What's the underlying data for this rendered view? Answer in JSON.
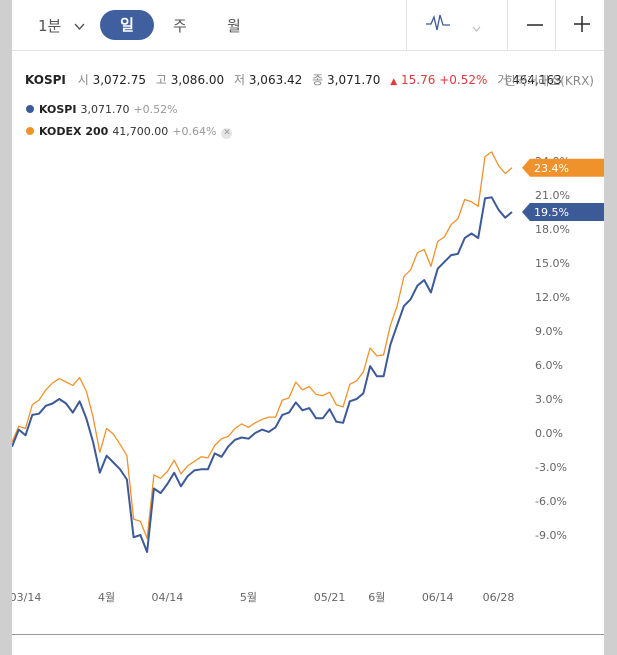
{
  "toolbar": {
    "interval": "1분",
    "tabs": [
      "일",
      "주",
      "월"
    ],
    "active_tab": "일",
    "icons": [
      "chevron-down-icon",
      "line-chart-icon",
      "minus-icon",
      "plus-icon"
    ]
  },
  "summary": {
    "name": "KOSPI",
    "open_label": "시",
    "open": "3,072.75",
    "high_label": "고",
    "high": "3,086.00",
    "low_label": "저",
    "low": "3,063.42",
    "close_label": "종",
    "close": "3,071.70",
    "change": "15.76",
    "change_pct": "+0.52%",
    "volume_label": "거",
    "volume": "464,163",
    "exchange": "한국거래소(KRX)"
  },
  "legend": [
    {
      "name": "KOSPI",
      "value": "3,071.70",
      "change": "+0.52%",
      "color": "#3d5a98"
    },
    {
      "name": "KODEX 200",
      "value": "41,700.00",
      "change": "+0.64%",
      "color": "#f0922b"
    }
  ],
  "colors": {
    "up": "#e03a3a",
    "accent": "#3f5f9e"
  },
  "chart_data": {
    "type": "line",
    "y_unit": "%",
    "yticks": [
      "-9.0%",
      "-6.0%",
      "-3.0%",
      "0.0%",
      "3.0%",
      "6.0%",
      "9.0%",
      "12.0%",
      "15.0%",
      "18.0%",
      "21.0%",
      "24.0%"
    ],
    "ylim": [
      -12.5,
      26.0
    ],
    "xticks": [
      {
        "label": "03/14",
        "index": 2
      },
      {
        "label": "4월",
        "index": 14
      },
      {
        "label": "04/14",
        "index": 23
      },
      {
        "label": "5월",
        "index": 35
      },
      {
        "label": "05/21",
        "index": 47
      },
      {
        "label": "6월",
        "index": 54
      },
      {
        "label": "06/14",
        "index": 63
      },
      {
        "label": "06/28",
        "index": 72
      }
    ],
    "series": [
      {
        "name": "KOSPI",
        "end_label": "19.5%",
        "values": [
          -1.2,
          0.3,
          -0.2,
          1.6,
          1.7,
          2.4,
          2.6,
          3.0,
          2.6,
          1.8,
          2.8,
          1.3,
          -0.8,
          -3.5,
          -2.0,
          -2.6,
          -3.2,
          -4.1,
          -9.2,
          -9.0,
          -10.5,
          -4.9,
          -5.3,
          -4.5,
          -3.5,
          -4.7,
          -3.8,
          -3.3,
          -3.2,
          -3.2,
          -1.8,
          -2.1,
          -1.2,
          -0.6,
          -0.4,
          -0.5,
          0.0,
          0.3,
          0.1,
          0.5,
          1.6,
          1.8,
          2.7,
          2.0,
          2.2,
          1.3,
          1.3,
          2.1,
          1.0,
          0.9,
          2.8,
          3.0,
          3.5,
          5.9,
          5.0,
          5.0,
          7.8,
          9.5,
          11.2,
          11.8,
          13.0,
          13.5,
          12.4,
          14.5,
          15.1,
          15.7,
          15.8,
          17.2,
          17.6,
          17.2,
          20.7,
          20.8,
          19.7,
          19.0,
          19.5
        ]
      },
      {
        "name": "KODEX 200",
        "end_label": "23.4%",
        "values": [
          -0.8,
          0.6,
          0.4,
          2.5,
          2.9,
          3.8,
          4.4,
          4.8,
          4.5,
          4.2,
          4.9,
          3.7,
          1.4,
          -1.7,
          0.4,
          -0.1,
          -1.0,
          -2.0,
          -7.6,
          -7.8,
          -9.3,
          -3.7,
          -4.0,
          -3.4,
          -2.4,
          -3.6,
          -2.9,
          -2.5,
          -2.1,
          -2.2,
          -1.1,
          -0.5,
          -0.3,
          0.4,
          0.8,
          0.5,
          0.9,
          1.2,
          1.4,
          1.4,
          2.9,
          3.1,
          4.5,
          3.8,
          4.1,
          3.4,
          3.3,
          3.6,
          2.5,
          2.3,
          4.3,
          4.6,
          5.4,
          7.5,
          6.8,
          6.9,
          9.5,
          11.2,
          13.8,
          14.4,
          15.9,
          16.2,
          14.7,
          16.9,
          17.3,
          18.4,
          18.9,
          20.6,
          20.4,
          20.0,
          24.4,
          24.8,
          23.6,
          22.9,
          23.4
        ]
      }
    ]
  }
}
